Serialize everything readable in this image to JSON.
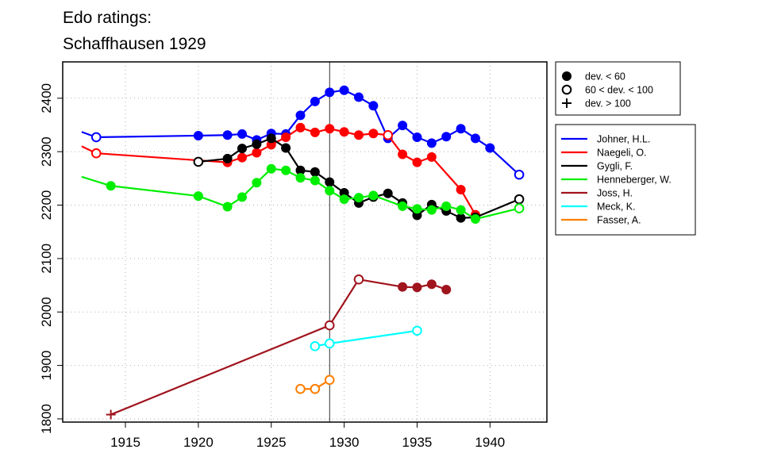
{
  "chart_data": {
    "type": "line",
    "title": [
      "Edo ratings:",
      "Schaffhausen 1929"
    ],
    "xlabel": "",
    "ylabel": "",
    "xlim": [
      1910.7,
      1943.9
    ],
    "ylim": [
      1794,
      2468
    ],
    "x_ticks": [
      1915,
      1920,
      1925,
      1930,
      1935,
      1940
    ],
    "y_ticks": [
      1800,
      1900,
      2000,
      2100,
      2200,
      2300,
      2400
    ],
    "grid": true,
    "reference_line_x": 1929,
    "marker_legend": {
      "position": "top-right",
      "items": [
        {
          "marker": "filled",
          "label": "dev. < 60"
        },
        {
          "marker": "open",
          "label": "60 < dev. < 100"
        },
        {
          "marker": "plus",
          "label": "dev. > 100"
        }
      ]
    },
    "series_legend_position": "right",
    "series": [
      {
        "name": "Johner, H.L.",
        "color": "#0000ff",
        "lead_in": {
          "x": 1912,
          "y": 2337
        },
        "points": [
          {
            "x": 1913,
            "y": 2327,
            "m": "open"
          },
          {
            "x": 1920,
            "y": 2330,
            "m": "filled"
          },
          {
            "x": 1922,
            "y": 2331,
            "m": "filled"
          },
          {
            "x": 1923,
            "y": 2333,
            "m": "filled"
          },
          {
            "x": 1924,
            "y": 2322,
            "m": "filled"
          },
          {
            "x": 1925,
            "y": 2334,
            "m": "filled"
          },
          {
            "x": 1926,
            "y": 2333,
            "m": "filled"
          },
          {
            "x": 1927,
            "y": 2368,
            "m": "filled"
          },
          {
            "x": 1928,
            "y": 2394,
            "m": "filled"
          },
          {
            "x": 1929,
            "y": 2411,
            "m": "filled"
          },
          {
            "x": 1930,
            "y": 2415,
            "m": "filled"
          },
          {
            "x": 1931,
            "y": 2402,
            "m": "filled"
          },
          {
            "x": 1932,
            "y": 2386,
            "m": "filled"
          },
          {
            "x": 1933,
            "y": 2325,
            "m": "filled"
          },
          {
            "x": 1934,
            "y": 2349,
            "m": "filled"
          },
          {
            "x": 1935,
            "y": 2327,
            "m": "filled"
          },
          {
            "x": 1936,
            "y": 2316,
            "m": "filled"
          },
          {
            "x": 1937,
            "y": 2328,
            "m": "filled"
          },
          {
            "x": 1938,
            "y": 2343,
            "m": "filled"
          },
          {
            "x": 1939,
            "y": 2325,
            "m": "filled"
          },
          {
            "x": 1940,
            "y": 2307,
            "m": "filled"
          },
          {
            "x": 1942,
            "y": 2257,
            "m": "open"
          }
        ]
      },
      {
        "name": "Naegeli, O.",
        "color": "#ff0000",
        "lead_in": {
          "x": 1912,
          "y": 2310
        },
        "points": [
          {
            "x": 1913,
            "y": 2297,
            "m": "open"
          },
          {
            "x": 1922,
            "y": 2280,
            "m": "filled"
          },
          {
            "x": 1923,
            "y": 2289,
            "m": "filled"
          },
          {
            "x": 1924,
            "y": 2298,
            "m": "filled"
          },
          {
            "x": 1925,
            "y": 2313,
            "m": "filled"
          },
          {
            "x": 1926,
            "y": 2327,
            "m": "filled"
          },
          {
            "x": 1927,
            "y": 2345,
            "m": "filled"
          },
          {
            "x": 1928,
            "y": 2336,
            "m": "filled"
          },
          {
            "x": 1929,
            "y": 2343,
            "m": "filled"
          },
          {
            "x": 1930,
            "y": 2337,
            "m": "filled"
          },
          {
            "x": 1931,
            "y": 2331,
            "m": "filled"
          },
          {
            "x": 1932,
            "y": 2334,
            "m": "filled"
          },
          {
            "x": 1933,
            "y": 2331,
            "m": "open"
          },
          {
            "x": 1934,
            "y": 2295,
            "m": "filled"
          },
          {
            "x": 1935,
            "y": 2280,
            "m": "filled"
          },
          {
            "x": 1936,
            "y": 2290,
            "m": "filled"
          },
          {
            "x": 1938,
            "y": 2229,
            "m": "filled"
          },
          {
            "x": 1939,
            "y": 2182,
            "m": "filled"
          }
        ]
      },
      {
        "name": "Gygli, F.",
        "color": "#000000",
        "points": [
          {
            "x": 1920,
            "y": 2281,
            "m": "open"
          },
          {
            "x": 1922,
            "y": 2287,
            "m": "filled"
          },
          {
            "x": 1923,
            "y": 2306,
            "m": "filled"
          },
          {
            "x": 1924,
            "y": 2314,
            "m": "filled"
          },
          {
            "x": 1925,
            "y": 2325,
            "m": "filled"
          },
          {
            "x": 1926,
            "y": 2307,
            "m": "filled"
          },
          {
            "x": 1927,
            "y": 2265,
            "m": "filled"
          },
          {
            "x": 1928,
            "y": 2262,
            "m": "filled"
          },
          {
            "x": 1929,
            "y": 2243,
            "m": "filled"
          },
          {
            "x": 1930,
            "y": 2223,
            "m": "filled"
          },
          {
            "x": 1931,
            "y": 2204,
            "m": "filled"
          },
          {
            "x": 1932,
            "y": 2215,
            "m": "filled"
          },
          {
            "x": 1933,
            "y": 2222,
            "m": "filled"
          },
          {
            "x": 1934,
            "y": 2204,
            "m": "filled"
          },
          {
            "x": 1935,
            "y": 2181,
            "m": "filled"
          },
          {
            "x": 1936,
            "y": 2201,
            "m": "filled"
          },
          {
            "x": 1937,
            "y": 2189,
            "m": "filled"
          },
          {
            "x": 1938,
            "y": 2176,
            "m": "filled"
          },
          {
            "x": 1939,
            "y": 2177,
            "m": "filled"
          },
          {
            "x": 1942,
            "y": 2211,
            "m": "open"
          }
        ]
      },
      {
        "name": "Henneberger, W.",
        "color": "#00ee00",
        "lead_in": {
          "x": 1912,
          "y": 2253
        },
        "points": [
          {
            "x": 1914,
            "y": 2236,
            "m": "filled"
          },
          {
            "x": 1920,
            "y": 2217,
            "m": "filled"
          },
          {
            "x": 1922,
            "y": 2197,
            "m": "filled"
          },
          {
            "x": 1923,
            "y": 2215,
            "m": "filled"
          },
          {
            "x": 1924,
            "y": 2242,
            "m": "filled"
          },
          {
            "x": 1925,
            "y": 2268,
            "m": "filled"
          },
          {
            "x": 1926,
            "y": 2265,
            "m": "filled"
          },
          {
            "x": 1927,
            "y": 2251,
            "m": "filled"
          },
          {
            "x": 1928,
            "y": 2246,
            "m": "filled"
          },
          {
            "x": 1929,
            "y": 2227,
            "m": "filled"
          },
          {
            "x": 1930,
            "y": 2211,
            "m": "filled"
          },
          {
            "x": 1931,
            "y": 2214,
            "m": "filled"
          },
          {
            "x": 1932,
            "y": 2218,
            "m": "filled"
          },
          {
            "x": 1934,
            "y": 2198,
            "m": "filled"
          },
          {
            "x": 1935,
            "y": 2193,
            "m": "filled"
          },
          {
            "x": 1936,
            "y": 2191,
            "m": "filled"
          },
          {
            "x": 1937,
            "y": 2198,
            "m": "filled"
          },
          {
            "x": 1938,
            "y": 2191,
            "m": "filled"
          },
          {
            "x": 1939,
            "y": 2174,
            "m": "filled"
          },
          {
            "x": 1942,
            "y": 2194,
            "m": "open"
          }
        ]
      },
      {
        "name": "Joss, H.",
        "color": "#a0141e",
        "points": [
          {
            "x": 1914,
            "y": 1808,
            "m": "plus"
          },
          {
            "x": 1929,
            "y": 1975,
            "m": "open"
          },
          {
            "x": 1931,
            "y": 2061,
            "m": "open"
          },
          {
            "x": 1934,
            "y": 2047,
            "m": "filled"
          },
          {
            "x": 1935,
            "y": 2046,
            "m": "filled"
          },
          {
            "x": 1936,
            "y": 2052,
            "m": "filled"
          },
          {
            "x": 1937,
            "y": 2042,
            "m": "filled"
          }
        ]
      },
      {
        "name": "Meck, K.",
        "color": "#00ffff",
        "points": [
          {
            "x": 1928,
            "y": 1936,
            "m": "open"
          },
          {
            "x": 1929,
            "y": 1941,
            "m": "open"
          },
          {
            "x": 1935,
            "y": 1965,
            "m": "open"
          }
        ]
      },
      {
        "name": "Fasser, A.",
        "color": "#ff7f00",
        "points": [
          {
            "x": 1927,
            "y": 1856,
            "m": "open"
          },
          {
            "x": 1928,
            "y": 1856,
            "m": "open"
          },
          {
            "x": 1929,
            "y": 1873,
            "m": "open"
          }
        ]
      }
    ]
  }
}
